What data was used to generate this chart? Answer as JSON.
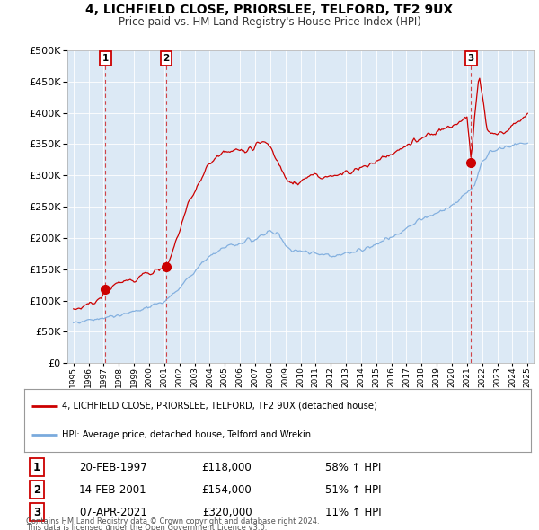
{
  "title": "4, LICHFIELD CLOSE, PRIORSLEE, TELFORD, TF2 9UX",
  "subtitle": "Price paid vs. HM Land Registry's House Price Index (HPI)",
  "legend_label_red": "4, LICHFIELD CLOSE, PRIORSLEE, TELFORD, TF2 9UX (detached house)",
  "legend_label_blue": "HPI: Average price, detached house, Telford and Wrekin",
  "footer_line1": "Contains HM Land Registry data © Crown copyright and database right 2024.",
  "footer_line2": "This data is licensed under the Open Government Licence v3.0.",
  "transactions": [
    {
      "label": "1",
      "date": "20-FEB-1997",
      "price": 118000,
      "hpi_pct": "58% ↑ HPI",
      "year": 1997.12
    },
    {
      "label": "2",
      "date": "14-FEB-2001",
      "price": 154000,
      "hpi_pct": "51% ↑ HPI",
      "year": 2001.12
    },
    {
      "label": "3",
      "date": "07-APR-2021",
      "price": 320000,
      "hpi_pct": "11% ↑ HPI",
      "year": 2021.27
    }
  ],
  "ylim": [
    0,
    500000
  ],
  "yticks": [
    0,
    50000,
    100000,
    150000,
    200000,
    250000,
    300000,
    350000,
    400000,
    450000,
    500000
  ],
  "plot_bg_color": "#dce9f5",
  "red_color": "#cc0000",
  "blue_color": "#7aaadd",
  "vline_color": "#cc0000",
  "grid_color": "#ffffff",
  "xstart": 1995,
  "xend": 2025
}
